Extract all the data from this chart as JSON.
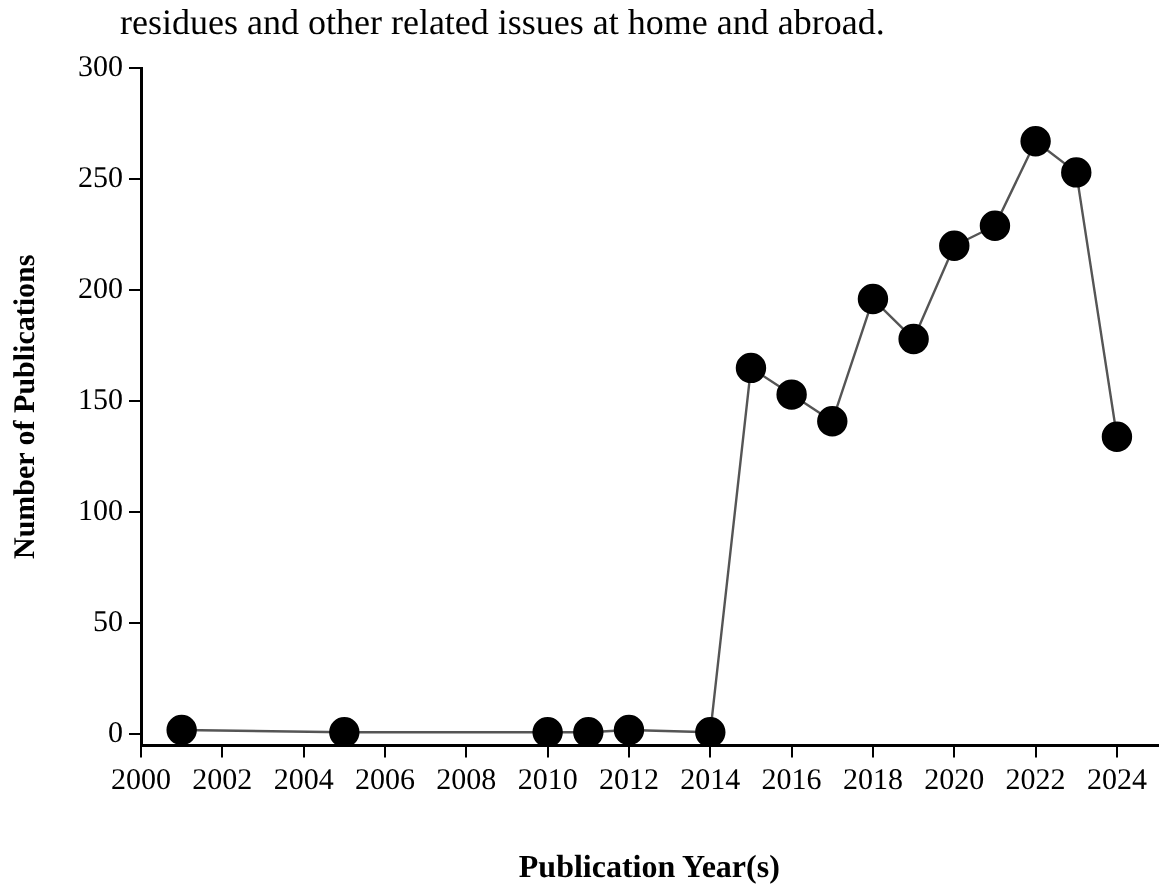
{
  "chart_data": {
    "type": "line",
    "annotations": [
      "residues and other related issues at home and abroad."
    ],
    "xlabel": "Publication Year(s)",
    "ylabel": "Number of Publications",
    "x": [
      2001,
      2005,
      2010,
      2011,
      2012,
      2014,
      2015,
      2016,
      2017,
      2018,
      2019,
      2020,
      2021,
      2022,
      2023,
      2024
    ],
    "series": [
      {
        "color": "#000000",
        "values": [
          2,
          1,
          1,
          1,
          2,
          1,
          165,
          153,
          141,
          196,
          178,
          220,
          229,
          267,
          253,
          134
        ]
      }
    ],
    "xlim": [
      2000,
      2025
    ],
    "xticks": [
      2000,
      2002,
      2004,
      2006,
      2008,
      2010,
      2012,
      2014,
      2016,
      2018,
      2020,
      2022,
      2024
    ],
    "ylim": [
      -5,
      300
    ],
    "yticks": [
      0,
      50,
      100,
      150,
      200,
      250,
      300
    ],
    "marker": "circle",
    "line_style": "solid",
    "grid": false
  }
}
